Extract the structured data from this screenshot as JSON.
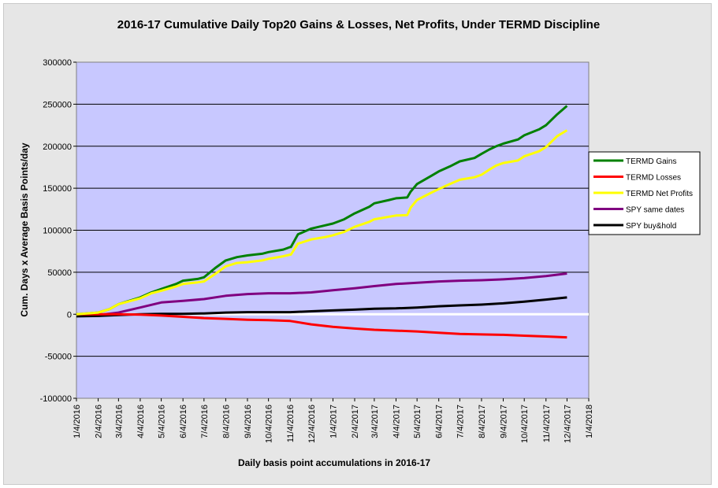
{
  "chart_data": {
    "type": "line",
    "title": "2016-17 Cumulative Daily Top20 Gains & Losses, Net Profits, Under TERMD Discipline",
    "xlabel": "Daily basis point accumulations in 2016-17",
    "ylabel": "Cum. Days x Average Basis Points/day",
    "ylim": [
      -100000,
      300000
    ],
    "y_ticks": [
      -100000,
      -50000,
      0,
      50000,
      100000,
      150000,
      200000,
      250000,
      300000
    ],
    "y_tick_labels": [
      "-100000",
      "-50000",
      "0",
      "50000",
      "100000",
      "150000",
      "200000",
      "250000",
      "300000"
    ],
    "x_tick_labels": [
      "1/4/2016",
      "2/4/2016",
      "3/4/2016",
      "4/4/2016",
      "5/4/2016",
      "6/4/2016",
      "7/4/2016",
      "8/4/2016",
      "9/4/2016",
      "10/4/2016",
      "11/4/2016",
      "12/4/2016",
      "1/4/2017",
      "2/4/2017",
      "3/4/2017",
      "4/4/2017",
      "5/4/2017",
      "6/4/2017",
      "7/4/2017",
      "8/4/2017",
      "9/4/2017",
      "10/4/2017",
      "11/4/2017",
      "12/4/2017",
      "1/4/2018"
    ],
    "grid": "horizontal",
    "plot_background": "#c8c8ff",
    "legend_position": "right",
    "series": [
      {
        "name": "TERMD Gains",
        "color": "#008000",
        "x": [
          "1/4/2016",
          "2/4/2016",
          "2/20/2016",
          "3/4/2016",
          "4/4/2016",
          "4/20/2016",
          "5/4/2016",
          "5/25/2016",
          "6/4/2016",
          "6/25/2016",
          "7/4/2016",
          "7/20/2016",
          "8/4/2016",
          "8/20/2016",
          "9/4/2016",
          "9/25/2016",
          "10/4/2016",
          "10/25/2016",
          "11/4/2016",
          "11/5/2016",
          "11/15/2016",
          "12/4/2016",
          "12/25/2016",
          "1/4/2017",
          "1/20/2017",
          "2/4/2017",
          "2/25/2017",
          "3/4/2017",
          "3/25/2017",
          "4/4/2017",
          "4/20/2017",
          "4/25/2017",
          "5/4/2017",
          "5/25/2017",
          "6/4/2017",
          "6/20/2017",
          "7/4/2017",
          "7/25/2017",
          "8/4/2017",
          "8/15/2017",
          "8/25/2017",
          "9/4/2017",
          "9/25/2017",
          "10/4/2017",
          "10/25/2017",
          "11/4/2017",
          "11/20/2017",
          "12/4/2017"
        ],
        "values": [
          0,
          2000,
          6000,
          12000,
          20000,
          26000,
          30000,
          36000,
          40000,
          42000,
          44000,
          55000,
          64000,
          68000,
          70000,
          72000,
          74000,
          77000,
          80000,
          80000,
          95000,
          102000,
          106000,
          108000,
          113000,
          120000,
          128000,
          132000,
          136000,
          138000,
          139000,
          146000,
          155000,
          165000,
          170000,
          176000,
          182000,
          186000,
          191000,
          196000,
          200000,
          203000,
          208000,
          213000,
          220000,
          225000,
          238000,
          248000
        ]
      },
      {
        "name": "TERMD Losses",
        "color": "#ff0000",
        "x": [
          "1/4/2016",
          "2/4/2016",
          "3/4/2016",
          "4/4/2016",
          "5/4/2016",
          "6/4/2016",
          "7/4/2016",
          "8/4/2016",
          "9/4/2016",
          "10/4/2016",
          "11/4/2016",
          "12/4/2016",
          "1/4/2017",
          "2/4/2017",
          "3/4/2017",
          "4/4/2017",
          "5/4/2017",
          "6/4/2017",
          "7/4/2017",
          "8/4/2017",
          "9/4/2017",
          "10/4/2017",
          "11/4/2017",
          "12/4/2017"
        ],
        "values": [
          0,
          0,
          0,
          -500,
          -1500,
          -3000,
          -4500,
          -5500,
          -6500,
          -7000,
          -8000,
          -12000,
          -15000,
          -17000,
          -18500,
          -19500,
          -20500,
          -22000,
          -23500,
          -24000,
          -24500,
          -25500,
          -26500,
          -27500
        ]
      },
      {
        "name": "TERMD Net Profits",
        "color": "#ffff00",
        "x": [
          "1/4/2016",
          "2/4/2016",
          "2/20/2016",
          "3/4/2016",
          "4/4/2016",
          "4/20/2016",
          "5/4/2016",
          "5/25/2016",
          "6/4/2016",
          "6/25/2016",
          "7/4/2016",
          "7/20/2016",
          "8/4/2016",
          "8/20/2016",
          "9/4/2016",
          "9/25/2016",
          "10/4/2016",
          "10/25/2016",
          "11/4/2016",
          "11/5/2016",
          "11/15/2016",
          "12/4/2016",
          "12/25/2016",
          "1/4/2017",
          "1/20/2017",
          "2/4/2017",
          "2/25/2017",
          "3/4/2017",
          "3/25/2017",
          "4/4/2017",
          "4/20/2017",
          "4/25/2017",
          "5/4/2017",
          "5/25/2017",
          "6/4/2017",
          "6/20/2017",
          "7/4/2017",
          "7/25/2017",
          "8/4/2017",
          "8/15/2017",
          "8/25/2017",
          "9/4/2017",
          "9/25/2017",
          "10/4/2017",
          "10/25/2017",
          "11/4/2017",
          "11/20/2017",
          "12/4/2017"
        ],
        "values": [
          0,
          2000,
          6000,
          12000,
          19000,
          25000,
          28000,
          33000,
          36000,
          38000,
          39000,
          48000,
          57000,
          61000,
          62000,
          64000,
          66000,
          69000,
          71000,
          71000,
          84000,
          89000,
          92000,
          94000,
          98000,
          104000,
          110000,
          113000,
          116000,
          117500,
          118000,
          127000,
          136000,
          145000,
          149000,
          155000,
          160000,
          163000,
          166000,
          172000,
          177000,
          180000,
          183000,
          188000,
          194000,
          199000,
          212000,
          219000
        ]
      },
      {
        "name": "SPY same dates",
        "color": "#800080",
        "x": [
          "1/4/2016",
          "2/4/2016",
          "3/4/2016",
          "4/4/2016",
          "5/4/2016",
          "6/4/2016",
          "7/4/2016",
          "8/4/2016",
          "9/4/2016",
          "10/4/2016",
          "11/4/2016",
          "12/4/2016",
          "1/4/2017",
          "2/4/2017",
          "3/4/2017",
          "4/4/2017",
          "5/4/2017",
          "6/4/2017",
          "7/4/2017",
          "8/4/2017",
          "9/4/2017",
          "10/4/2017",
          "11/4/2017",
          "12/4/2017"
        ],
        "values": [
          -2000,
          -1000,
          2000,
          8000,
          14000,
          16000,
          18000,
          22000,
          24000,
          25000,
          25000,
          26000,
          28500,
          31000,
          33500,
          36000,
          37500,
          39000,
          40000,
          40500,
          41500,
          43000,
          45500,
          48500
        ]
      },
      {
        "name": "SPY buy&hold",
        "color": "#000000",
        "x": [
          "1/4/2016",
          "2/4/2016",
          "3/4/2016",
          "4/4/2016",
          "5/4/2016",
          "6/4/2016",
          "7/4/2016",
          "8/4/2016",
          "9/4/2016",
          "10/4/2016",
          "11/4/2016",
          "12/4/2016",
          "1/4/2017",
          "2/4/2017",
          "3/4/2017",
          "4/4/2017",
          "5/4/2017",
          "6/4/2017",
          "7/4/2017",
          "8/4/2017",
          "9/4/2017",
          "10/4/2017",
          "11/4/2017",
          "12/4/2017"
        ],
        "values": [
          -2500,
          -2000,
          -1000,
          0,
          500,
          500,
          1000,
          2000,
          2500,
          2500,
          2500,
          3500,
          4500,
          5500,
          6500,
          7000,
          8000,
          9500,
          10500,
          11500,
          13000,
          15000,
          17500,
          20000
        ]
      }
    ]
  }
}
